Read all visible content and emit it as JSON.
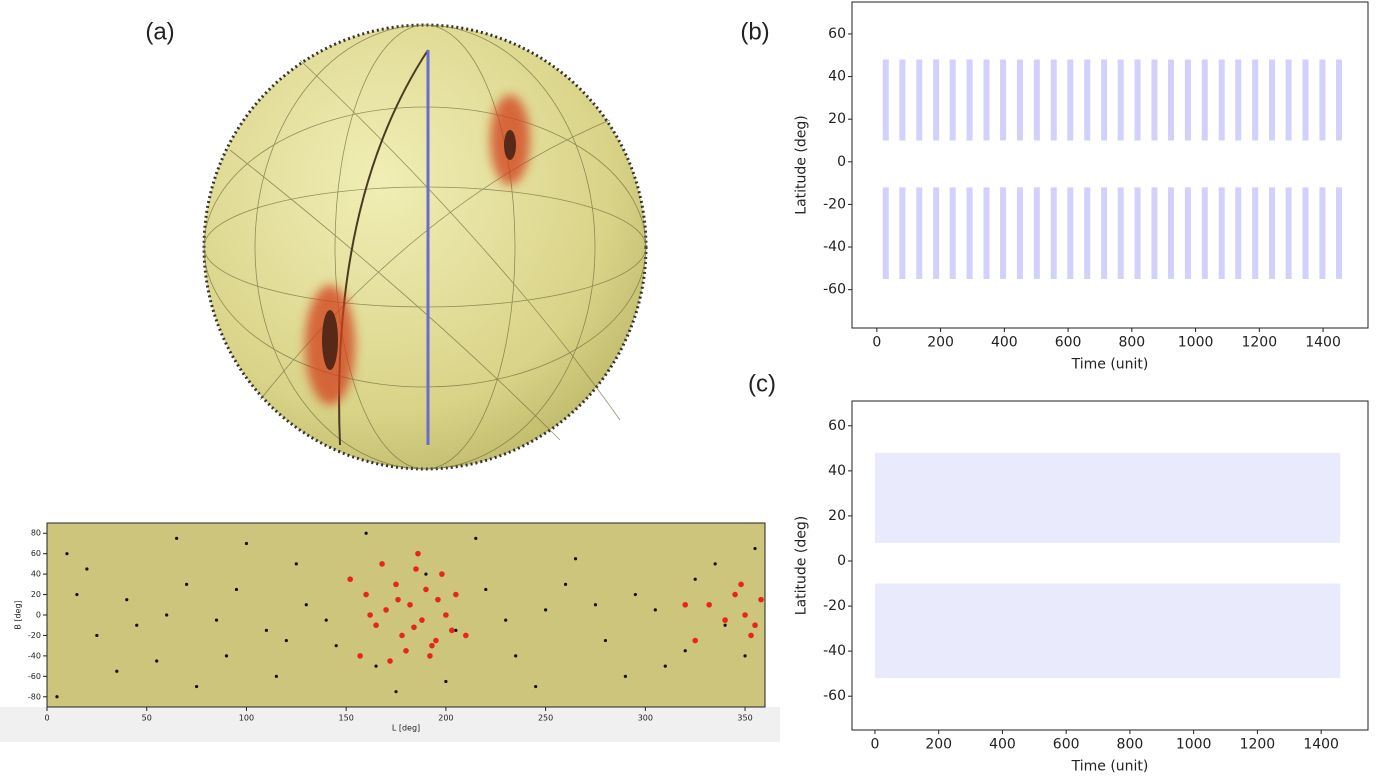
{
  "chart_data": [
    {
      "type": "sphere",
      "title": "(a)"
    },
    {
      "type": "scatter",
      "xlabel": "L [deg]",
      "ylabel": "B [deg]",
      "xlim": [
        0,
        360
      ],
      "ylim": [
        -90,
        90
      ],
      "xticks": [
        0,
        50,
        100,
        150,
        200,
        250,
        300,
        350
      ],
      "yticks": [
        -80,
        -60,
        -40,
        -20,
        0,
        20,
        40,
        60,
        80
      ],
      "background": "#cdc57c",
      "series": [
        {
          "color": "#111111",
          "x": [
            10,
            25,
            40,
            55,
            70,
            85,
            100,
            115,
            130,
            145,
            160,
            175,
            190,
            205,
            220,
            235,
            250,
            265,
            280,
            295,
            310,
            325,
            340,
            355,
            5,
            20,
            35,
            60,
            75,
            95,
            110,
            125,
            140,
            165,
            200,
            215,
            230,
            245,
            260,
            275,
            290,
            305,
            320,
            335,
            350,
            15,
            45,
            65,
            90,
            120
          ],
          "y": [
            60,
            -20,
            15,
            -45,
            30,
            -5,
            70,
            -60,
            10,
            -30,
            80,
            -75,
            40,
            -15,
            25,
            -40,
            5,
            55,
            -25,
            20,
            -50,
            35,
            -10,
            65,
            -80,
            45,
            -55,
            0,
            -70,
            25,
            -15,
            50,
            -5,
            -50,
            -65,
            75,
            -5,
            -70,
            30,
            10,
            -60,
            5,
            -35,
            50,
            -40,
            20,
            -10,
            75,
            -40,
            -25
          ]
        },
        {
          "color": "#e8241c",
          "x": [
            160,
            165,
            170,
            175,
            178,
            182,
            185,
            188,
            190,
            193,
            196,
            200,
            203,
            157,
            168,
            172,
            180,
            186,
            195,
            205,
            210,
            152,
            162,
            176,
            184,
            192,
            198,
            345,
            350,
            355,
            358,
            340,
            332,
            348,
            353,
            320,
            325
          ],
          "y": [
            20,
            -10,
            5,
            30,
            -20,
            10,
            45,
            -5,
            25,
            -30,
            15,
            0,
            -15,
            -40,
            50,
            -45,
            -35,
            60,
            -25,
            20,
            -20,
            35,
            0,
            15,
            -12,
            -40,
            40,
            20,
            0,
            -10,
            15,
            -5,
            10,
            30,
            -20,
            10,
            -25
          ]
        }
      ]
    },
    {
      "type": "stripes",
      "title": "(b)",
      "xlabel": "Time (unit)",
      "ylabel": "Latitude (deg)",
      "xlim": [
        -78,
        1541
      ],
      "ylim": [
        -78,
        75
      ],
      "xticks": [
        0,
        200,
        400,
        600,
        800,
        1000,
        1200,
        1400
      ],
      "yticks": [
        -60,
        -40,
        -20,
        0,
        20,
        40,
        60
      ],
      "color": "#5a5af0",
      "stripe_x": [
        28,
        80,
        133,
        186,
        238,
        291,
        344,
        396,
        449,
        502,
        555,
        607,
        660,
        713,
        765,
        818,
        871,
        923,
        976,
        1029,
        1082,
        1134,
        1187,
        1240,
        1292,
        1345,
        1398,
        1450
      ],
      "north": [
        10,
        48
      ],
      "south": [
        -55,
        -12
      ]
    },
    {
      "type": "diffuse",
      "title": "(c)",
      "xlabel": "Time (unit)",
      "ylabel": "Latitude (deg)",
      "xlim": [
        -72,
        1547
      ],
      "ylim": [
        -75,
        71
      ],
      "xticks": [
        0,
        200,
        400,
        600,
        800,
        1000,
        1200,
        1400
      ],
      "yticks": [
        -60,
        -40,
        -20,
        0,
        20,
        40,
        60
      ],
      "color": "#6a6af0",
      "x_range": [
        0,
        1460
      ],
      "north": [
        8,
        48
      ],
      "south": [
        -52,
        -10
      ]
    }
  ]
}
